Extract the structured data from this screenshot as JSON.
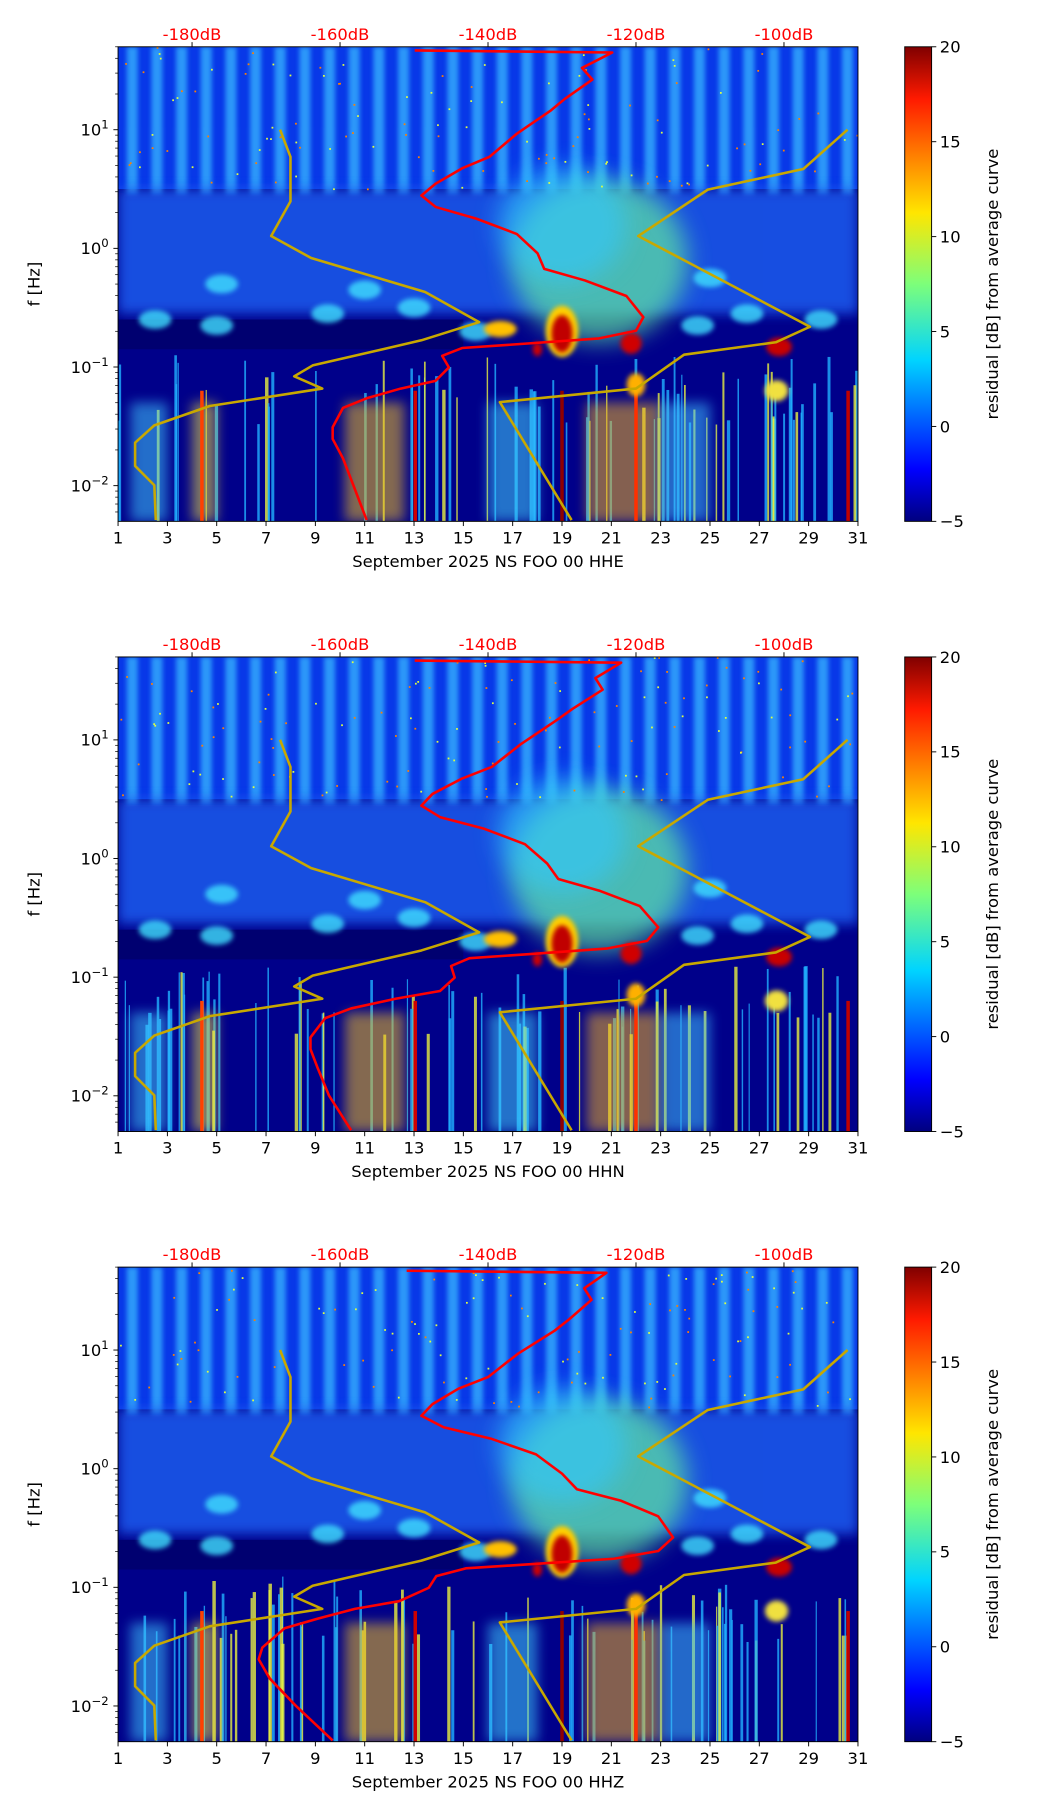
{
  "chart_data": [
    {
      "type": "heatmap",
      "xlabel": "September 2025 NS FOO 00 HHE",
      "ylabel": "f [Hz]",
      "xlim": [
        1,
        31
      ],
      "xticks": [
        1,
        3,
        5,
        7,
        9,
        11,
        13,
        15,
        17,
        19,
        21,
        23,
        25,
        27,
        29,
        31
      ],
      "yscale": "log",
      "ylim_log10_hz": [
        -2.301,
        1.699
      ],
      "yticks": [
        {
          "base": "10",
          "exp": "−2",
          "log": -2
        },
        {
          "base": "10",
          "exp": "−1",
          "log": -1
        },
        {
          "base": "10",
          "exp": "0",
          "log": 0
        },
        {
          "base": "10",
          "exp": "1",
          "log": 1
        }
      ],
      "top_axis": {
        "labels": [
          "-180dB",
          "-160dB",
          "-140dB",
          "-120dB",
          "-100dB"
        ],
        "values_db": [
          -180,
          -160,
          -140,
          -120,
          -100
        ],
        "color": "#ff0000"
      },
      "colorbar": {
        "label": "residual [dB] from average curve",
        "range": [
          -5,
          20
        ],
        "ticks": [
          "−5",
          "0",
          "5",
          "10",
          "15",
          "20"
        ],
        "tick_values": [
          -5,
          0,
          5,
          10,
          15,
          20
        ],
        "colormap": "jet"
      },
      "series": [
        {
          "name": "noise-model-low",
          "color": "#c8a800",
          "points_db_log10f": [
            [
              -168.1,
              1
            ],
            [
              -166.7,
              0.772
            ],
            [
              -166.7,
              0.397
            ],
            [
              -169.3,
              0.104
            ],
            [
              -163.9,
              -0.081
            ],
            [
              -148.5,
              -0.368
            ],
            [
              -141.2,
              -0.622
            ],
            [
              -149.0,
              -0.775
            ],
            [
              -163.7,
              -0.987
            ],
            [
              -166.2,
              -1.078
            ],
            [
              -162.4,
              -1.182
            ],
            [
              -177.6,
              -1.329
            ],
            [
              -185.1,
              -1.492
            ],
            [
              -187.7,
              -1.638
            ],
            [
              -187.7,
              -1.834
            ],
            [
              -185.1,
              -1.997
            ],
            [
              -184.9,
              -2.29
            ]
          ]
        },
        {
          "name": "noise-model-high",
          "color": "#c8a800",
          "points_db_log10f": [
            [
              -91.4,
              1
            ],
            [
              -97.4,
              0.668
            ],
            [
              -110.3,
              0.495
            ],
            [
              -119.7,
              0.104
            ],
            [
              -96.5,
              -0.661
            ],
            [
              -101.1,
              -0.792
            ],
            [
              -113.5,
              -0.896
            ],
            [
              -120.0,
              -1.182
            ],
            [
              -138.4,
              -1.296
            ],
            [
              -128.7,
              -2.29
            ]
          ]
        },
        {
          "name": "average-psd",
          "color": "#ff0000",
          "points_db_log10f": [
            [
              -149.9,
              1.668
            ],
            [
              -123.2,
              1.651
            ],
            [
              -127.3,
              1.521
            ],
            [
              -125.9,
              1.423
            ],
            [
              -129.6,
              1.261
            ],
            [
              -131.5,
              1.163
            ],
            [
              -136.1,
              0.967
            ],
            [
              -139.8,
              0.772
            ],
            [
              -143.5,
              0.674
            ],
            [
              -147.1,
              0.544
            ],
            [
              -149.0,
              0.446
            ],
            [
              -147.1,
              0.349
            ],
            [
              -141.6,
              0.251
            ],
            [
              -136.1,
              0.121
            ],
            [
              -133.3,
              -0.042
            ],
            [
              -132.4,
              -0.173
            ],
            [
              -126.9,
              -0.27
            ],
            [
              -121.3,
              -0.401
            ],
            [
              -119.0,
              -0.58
            ],
            [
              -120.0,
              -0.694
            ],
            [
              -125.0,
              -0.759
            ],
            [
              -136.1,
              -0.808
            ],
            [
              -143.5,
              -0.84
            ],
            [
              -146.2,
              -0.906
            ],
            [
              -145.3,
              -1.003
            ],
            [
              -147.1,
              -1.117
            ],
            [
              -151.8,
              -1.182
            ],
            [
              -156.4,
              -1.264
            ],
            [
              -159.6,
              -1.345
            ],
            [
              -161.0,
              -1.508
            ],
            [
              -161.0,
              -1.606
            ],
            [
              -159.6,
              -1.769
            ],
            [
              -158.2,
              -1.997
            ],
            [
              -156.4,
              -2.29
            ]
          ]
        }
      ]
    },
    {
      "type": "heatmap",
      "xlabel": "September 2025 NS FOO 00 HHN",
      "ylabel": "f [Hz]",
      "xlim": [
        1,
        31
      ],
      "xticks": [
        1,
        3,
        5,
        7,
        9,
        11,
        13,
        15,
        17,
        19,
        21,
        23,
        25,
        27,
        29,
        31
      ],
      "yscale": "log",
      "ylim_log10_hz": [
        -2.301,
        1.699
      ],
      "yticks": [
        {
          "base": "10",
          "exp": "−2",
          "log": -2
        },
        {
          "base": "10",
          "exp": "−1",
          "log": -1
        },
        {
          "base": "10",
          "exp": "0",
          "log": 0
        },
        {
          "base": "10",
          "exp": "1",
          "log": 1
        }
      ],
      "top_axis": {
        "labels": [
          "-180dB",
          "-160dB",
          "-140dB",
          "-120dB",
          "-100dB"
        ],
        "values_db": [
          -180,
          -160,
          -140,
          -120,
          -100
        ],
        "color": "#ff0000"
      },
      "colorbar": {
        "label": "residual [dB] from average curve",
        "range": [
          -5,
          20
        ],
        "ticks": [
          "−5",
          "0",
          "5",
          "10",
          "15",
          "20"
        ],
        "tick_values": [
          -5,
          0,
          5,
          10,
          15,
          20
        ],
        "colormap": "jet"
      },
      "series": [
        {
          "name": "noise-model-low",
          "color": "#c8a800",
          "points_db_log10f": [
            [
              -168.1,
              1
            ],
            [
              -166.7,
              0.772
            ],
            [
              -166.7,
              0.397
            ],
            [
              -169.3,
              0.104
            ],
            [
              -163.9,
              -0.081
            ],
            [
              -148.5,
              -0.368
            ],
            [
              -141.2,
              -0.622
            ],
            [
              -149.0,
              -0.775
            ],
            [
              -163.7,
              -0.987
            ],
            [
              -166.2,
              -1.078
            ],
            [
              -162.4,
              -1.182
            ],
            [
              -177.6,
              -1.329
            ],
            [
              -185.1,
              -1.492
            ],
            [
              -187.7,
              -1.638
            ],
            [
              -187.7,
              -1.834
            ],
            [
              -185.1,
              -1.997
            ],
            [
              -184.9,
              -2.29
            ]
          ]
        },
        {
          "name": "noise-model-high",
          "color": "#c8a800",
          "points_db_log10f": [
            [
              -91.4,
              1
            ],
            [
              -97.4,
              0.668
            ],
            [
              -110.3,
              0.495
            ],
            [
              -119.7,
              0.104
            ],
            [
              -96.5,
              -0.661
            ],
            [
              -101.1,
              -0.792
            ],
            [
              -113.5,
              -0.896
            ],
            [
              -120.0,
              -1.182
            ],
            [
              -138.4,
              -1.296
            ],
            [
              -128.7,
              -2.29
            ]
          ]
        },
        {
          "name": "average-psd",
          "color": "#ff0000",
          "points_db_log10f": [
            [
              -149.9,
              1.668
            ],
            [
              -122.0,
              1.651
            ],
            [
              -125.5,
              1.521
            ],
            [
              -124.5,
              1.423
            ],
            [
              -128.6,
              1.261
            ],
            [
              -130.8,
              1.163
            ],
            [
              -135.5,
              0.967
            ],
            [
              -139.5,
              0.772
            ],
            [
              -143.5,
              0.674
            ],
            [
              -147.5,
              0.544
            ],
            [
              -149.0,
              0.446
            ],
            [
              -146.5,
              0.349
            ],
            [
              -140.5,
              0.251
            ],
            [
              -135.0,
              0.121
            ],
            [
              -132.0,
              -0.042
            ],
            [
              -130.5,
              -0.173
            ],
            [
              -125.0,
              -0.27
            ],
            [
              -119.5,
              -0.401
            ],
            [
              -117.0,
              -0.58
            ],
            [
              -118.5,
              -0.694
            ],
            [
              -124.0,
              -0.759
            ],
            [
              -135.0,
              -0.808
            ],
            [
              -142.5,
              -0.84
            ],
            [
              -145.0,
              -0.906
            ],
            [
              -144.5,
              -1.003
            ],
            [
              -146.5,
              -1.117
            ],
            [
              -152.5,
              -1.182
            ],
            [
              -158.5,
              -1.264
            ],
            [
              -162.0,
              -1.345
            ],
            [
              -164.0,
              -1.508
            ],
            [
              -164.0,
              -1.606
            ],
            [
              -163.0,
              -1.769
            ],
            [
              -161.5,
              -1.997
            ],
            [
              -158.5,
              -2.29
            ]
          ]
        }
      ]
    },
    {
      "type": "heatmap",
      "xlabel": "September 2025 NS FOO 00 HHZ",
      "ylabel": "f [Hz]",
      "xlim": [
        1,
        31
      ],
      "xticks": [
        1,
        3,
        5,
        7,
        9,
        11,
        13,
        15,
        17,
        19,
        21,
        23,
        25,
        27,
        29,
        31
      ],
      "yscale": "log",
      "ylim_log10_hz": [
        -2.301,
        1.699
      ],
      "yticks": [
        {
          "base": "10",
          "exp": "−2",
          "log": -2
        },
        {
          "base": "10",
          "exp": "−1",
          "log": -1
        },
        {
          "base": "10",
          "exp": "0",
          "log": 0
        },
        {
          "base": "10",
          "exp": "1",
          "log": 1
        }
      ],
      "top_axis": {
        "labels": [
          "-180dB",
          "-160dB",
          "-140dB",
          "-120dB",
          "-100dB"
        ],
        "values_db": [
          -180,
          -160,
          -140,
          -120,
          -100
        ],
        "color": "#ff0000"
      },
      "colorbar": {
        "label": "residual [dB] from average curve",
        "range": [
          -5,
          20
        ],
        "ticks": [
          "−5",
          "0",
          "5",
          "10",
          "15",
          "20"
        ],
        "tick_values": [
          -5,
          0,
          5,
          10,
          15,
          20
        ],
        "colormap": "jet"
      },
      "series": [
        {
          "name": "noise-model-low",
          "color": "#c8a800",
          "points_db_log10f": [
            [
              -168.1,
              1
            ],
            [
              -166.7,
              0.772
            ],
            [
              -166.7,
              0.397
            ],
            [
              -169.3,
              0.104
            ],
            [
              -163.9,
              -0.081
            ],
            [
              -148.5,
              -0.368
            ],
            [
              -141.2,
              -0.622
            ],
            [
              -149.0,
              -0.775
            ],
            [
              -163.7,
              -0.987
            ],
            [
              -166.2,
              -1.078
            ],
            [
              -162.4,
              -1.182
            ],
            [
              -177.6,
              -1.329
            ],
            [
              -185.1,
              -1.492
            ],
            [
              -187.7,
              -1.638
            ],
            [
              -187.7,
              -1.834
            ],
            [
              -185.1,
              -1.997
            ],
            [
              -184.9,
              -2.29
            ]
          ]
        },
        {
          "name": "noise-model-high",
          "color": "#c8a800",
          "points_db_log10f": [
            [
              -91.4,
              1
            ],
            [
              -97.4,
              0.668
            ],
            [
              -110.3,
              0.495
            ],
            [
              -119.7,
              0.104
            ],
            [
              -96.5,
              -0.661
            ],
            [
              -101.1,
              -0.792
            ],
            [
              -113.5,
              -0.896
            ],
            [
              -120.0,
              -1.182
            ],
            [
              -138.4,
              -1.296
            ],
            [
              -128.7,
              -2.29
            ]
          ]
        },
        {
          "name": "average-psd",
          "color": "#ff0000",
          "points_db_log10f": [
            [
              -151.0,
              1.668
            ],
            [
              -124.0,
              1.651
            ],
            [
              -127.0,
              1.521
            ],
            [
              -126.0,
              1.423
            ],
            [
              -129.0,
              1.261
            ],
            [
              -131.0,
              1.163
            ],
            [
              -136.0,
              0.967
            ],
            [
              -140.0,
              0.772
            ],
            [
              -144.0,
              0.674
            ],
            [
              -147.5,
              0.544
            ],
            [
              -149.0,
              0.446
            ],
            [
              -146.0,
              0.349
            ],
            [
              -139.5,
              0.251
            ],
            [
              -133.5,
              0.121
            ],
            [
              -130.0,
              -0.042
            ],
            [
              -128.0,
              -0.173
            ],
            [
              -122.0,
              -0.27
            ],
            [
              -117.0,
              -0.401
            ],
            [
              -115.0,
              -0.58
            ],
            [
              -117.0,
              -0.694
            ],
            [
              -123.0,
              -0.759
            ],
            [
              -135.0,
              -0.808
            ],
            [
              -143.0,
              -0.84
            ],
            [
              -147.0,
              -0.906
            ],
            [
              -148.0,
              -1.003
            ],
            [
              -152.0,
              -1.117
            ],
            [
              -158.0,
              -1.182
            ],
            [
              -163.0,
              -1.264
            ],
            [
              -167.5,
              -1.345
            ],
            [
              -170.5,
              -1.508
            ],
            [
              -171.0,
              -1.606
            ],
            [
              -169.5,
              -1.769
            ],
            [
              -166.0,
              -1.997
            ],
            [
              -161.0,
              -2.29
            ]
          ]
        }
      ]
    }
  ]
}
